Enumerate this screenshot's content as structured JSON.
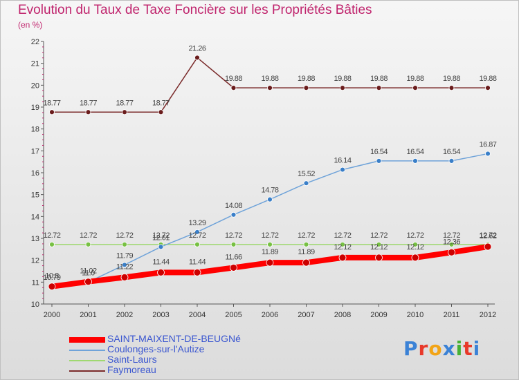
{
  "header": {
    "title": "Evolution du Taux de Taxe Foncière sur les Propriétés Bâties",
    "subtitle": "(en %)"
  },
  "logo": {
    "text": "Proxiti",
    "colors": [
      "#3b82d6",
      "#e8392a",
      "#f2a416",
      "#3b82d6",
      "#46b135",
      "#e8392a",
      "#3b82d6"
    ]
  },
  "chart_data": {
    "type": "line",
    "x": [
      "2000",
      "2001",
      "2002",
      "2003",
      "2004",
      "2005",
      "2006",
      "2007",
      "2008",
      "2009",
      "2010",
      "2011",
      "2012"
    ],
    "ylim": [
      10,
      22
    ],
    "yticks": [
      "10",
      "11",
      "12",
      "13",
      "14",
      "15",
      "16",
      "17",
      "18",
      "19",
      "20",
      "21",
      "22"
    ],
    "grid": false,
    "legend_position": "bottom-left",
    "series": [
      {
        "name": "SAINT-MAIXENT-DE-BEUGNé",
        "color": "#ff0000",
        "marker": "#cc0000",
        "line_width": 8,
        "marker_r": 5,
        "values": [
          10.8,
          11.02,
          11.22,
          11.44,
          11.44,
          11.66,
          11.89,
          11.89,
          12.12,
          12.12,
          12.12,
          12.36,
          12.62
        ],
        "labels": [
          "10.8",
          "11.02",
          "11.22",
          "11.44",
          "11.44",
          "11.66",
          "11.89",
          "11.89",
          "12.12",
          "12.12",
          "12.12",
          "12.36",
          "12.62"
        ]
      },
      {
        "name": "Coulonges-sur-l'Autize",
        "color": "#6fa3d9",
        "marker": "#3a7fc8",
        "line_width": 1.5,
        "marker_r": 3.5,
        "values": [
          10.79,
          11.0,
          11.79,
          12.61,
          13.29,
          14.08,
          14.78,
          15.52,
          16.14,
          16.54,
          16.54,
          16.54,
          16.87
        ],
        "labels": [
          "10.79",
          "11.0",
          "11.79",
          "12.61",
          "13.29",
          "14.08",
          "14.78",
          "15.52",
          "16.14",
          "16.54",
          "16.54",
          "16.54",
          "16.87"
        ]
      },
      {
        "name": "Saint-Laurs",
        "color": "#9fd870",
        "marker": "#77c043",
        "line_width": 1.5,
        "marker_r": 3.5,
        "values": [
          12.72,
          12.72,
          12.72,
          12.72,
          12.72,
          12.72,
          12.72,
          12.72,
          12.72,
          12.72,
          12.72,
          12.72,
          12.72
        ],
        "labels": [
          "12.72",
          "12.72",
          "12.72",
          "12.72",
          "12.72",
          "12.72",
          "12.72",
          "12.72",
          "12.72",
          "12.72",
          "12.72",
          "12.72",
          "12.72"
        ]
      },
      {
        "name": "Faymoreau",
        "color": "#7a2a2a",
        "marker": "#6a1c1c",
        "line_width": 1.5,
        "marker_r": 3.5,
        "values": [
          18.77,
          18.77,
          18.77,
          18.77,
          21.26,
          19.88,
          19.88,
          19.88,
          19.88,
          19.88,
          19.88,
          19.88,
          19.88
        ],
        "labels": [
          "18.77",
          "18.77",
          "18.77",
          "18.77",
          "21.26",
          "19.88",
          "19.88",
          "19.88",
          "19.88",
          "19.88",
          "19.88",
          "19.88",
          "19.88"
        ]
      }
    ]
  }
}
